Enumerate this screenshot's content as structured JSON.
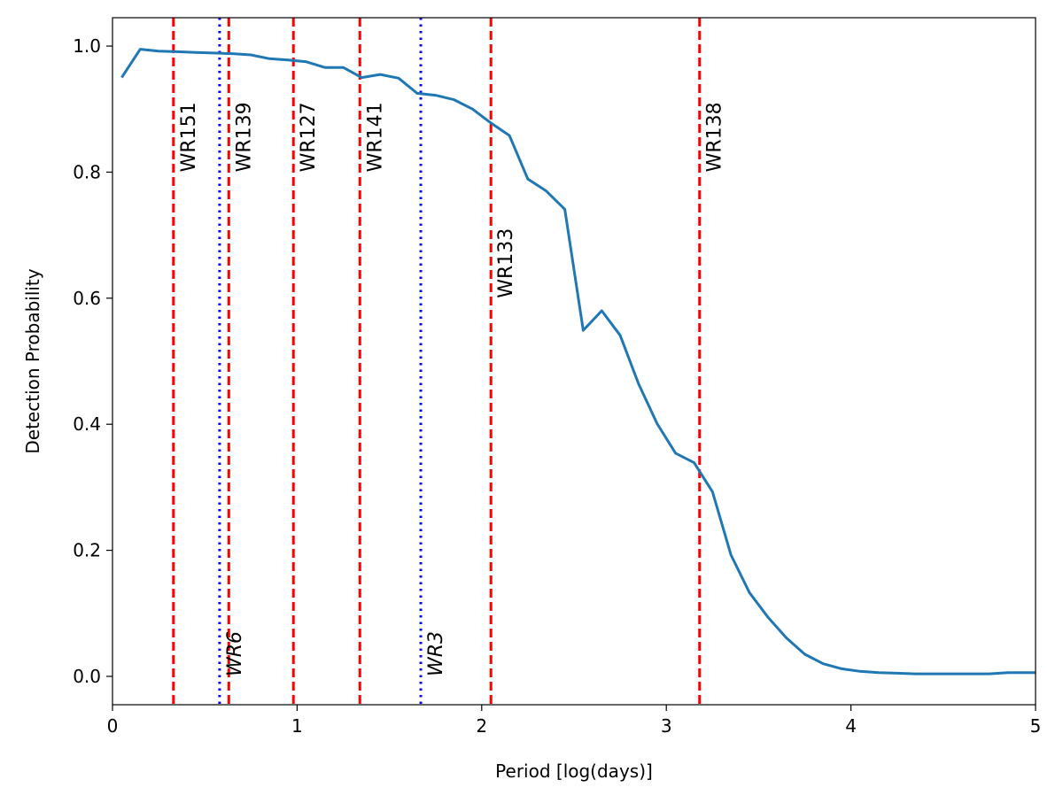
{
  "chart_data": {
    "type": "line",
    "title": "",
    "xlabel": "Period [log(days)]",
    "ylabel": "Detection Probability",
    "xlim": [
      0,
      5
    ],
    "ylim": [
      -0.045,
      1.045
    ],
    "xticks": [
      0,
      1,
      2,
      3,
      4,
      5
    ],
    "xtick_labels": [
      "0",
      "1",
      "2",
      "3",
      "4",
      "5"
    ],
    "yticks": [
      0.0,
      0.2,
      0.4,
      0.6,
      0.8,
      1.0
    ],
    "ytick_labels": [
      "0.0",
      "0.2",
      "0.4",
      "0.6",
      "0.8",
      "1.0"
    ],
    "grid": false,
    "series": [
      {
        "color": "#1f77b4",
        "x": [
          0.05,
          0.15,
          0.25,
          0.35,
          0.45,
          0.55,
          0.65,
          0.75,
          0.85,
          0.95,
          1.05,
          1.15,
          1.25,
          1.35,
          1.45,
          1.55,
          1.65,
          1.75,
          1.85,
          1.95,
          2.05,
          2.15,
          2.25,
          2.35,
          2.45,
          2.55,
          2.65,
          2.75,
          2.85,
          2.95,
          3.05,
          3.15,
          3.25,
          3.35,
          3.45,
          3.55,
          3.65,
          3.75,
          3.85,
          3.95,
          4.05,
          4.15,
          4.25,
          4.35,
          4.45,
          4.55,
          4.65,
          4.75,
          4.85,
          4.95,
          5.0
        ],
        "y": [
          0.95,
          0.995,
          0.992,
          0.991,
          0.99,
          0.989,
          0.988,
          0.986,
          0.98,
          0.978,
          0.975,
          0.966,
          0.966,
          0.95,
          0.955,
          0.949,
          0.925,
          0.922,
          0.915,
          0.9,
          0.878,
          0.858,
          0.789,
          0.77,
          0.741,
          0.549,
          0.58,
          0.541,
          0.464,
          0.401,
          0.354,
          0.339,
          0.293,
          0.193,
          0.133,
          0.094,
          0.061,
          0.035,
          0.02,
          0.012,
          0.008,
          0.006,
          0.005,
          0.004,
          0.004,
          0.004,
          0.004,
          0.004,
          0.006,
          0.006,
          0.006
        ]
      }
    ],
    "vlines": [
      {
        "label": "WR151",
        "x": 0.33,
        "style": "dashed",
        "color": "#ff0000",
        "label_y": 0.8,
        "italic": false
      },
      {
        "label": "WR6",
        "x": 0.58,
        "style": "dotted",
        "color": "#0000ff",
        "label_y": 0.0,
        "italic": true
      },
      {
        "label": "WR139",
        "x": 0.63,
        "style": "dashed",
        "color": "#ff0000",
        "label_y": 0.8,
        "italic": false
      },
      {
        "label": "WR127",
        "x": 0.98,
        "style": "dashed",
        "color": "#ff0000",
        "label_y": 0.8,
        "italic": false
      },
      {
        "label": "WR141",
        "x": 1.34,
        "style": "dashed",
        "color": "#ff0000",
        "label_y": 0.8,
        "italic": false
      },
      {
        "label": "WR3",
        "x": 1.67,
        "style": "dotted",
        "color": "#0000ff",
        "label_y": 0.0,
        "italic": true
      },
      {
        "label": "WR133",
        "x": 2.05,
        "style": "dashed",
        "color": "#ff0000",
        "label_y": 0.6,
        "italic": false
      },
      {
        "label": "WR138",
        "x": 3.18,
        "style": "dashed",
        "color": "#ff0000",
        "label_y": 0.8,
        "italic": false
      }
    ]
  }
}
